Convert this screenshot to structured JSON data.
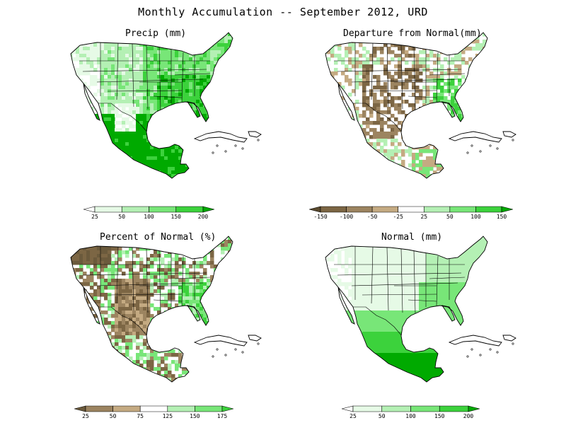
{
  "title": "Monthly Accumulation -- September 2012, URD",
  "panels": [
    {
      "title": "Precip (mm)",
      "colorbar": {
        "labels": [
          "25",
          "50",
          "100",
          "150",
          "200"
        ],
        "colors": [
          "#ffffff",
          "#e6fae6",
          "#b4f0b4",
          "#78e678",
          "#3cd23c",
          "#00aa00"
        ]
      }
    },
    {
      "title": "Departure from Normal(mm)",
      "colorbar": {
        "labels": [
          "-150",
          "-100",
          "-50",
          "-25",
          "25",
          "50",
          "100",
          "150"
        ],
        "colors": [
          "#5a4a2e",
          "#7c6644",
          "#9c8460",
          "#c4aa82",
          "#ffffff",
          "#b4f0b4",
          "#78e678",
          "#3cd23c",
          "#00aa00"
        ]
      }
    },
    {
      "title": "Percent of Normal (%)",
      "colorbar": {
        "labels": [
          "25",
          "50",
          "75",
          "125",
          "150",
          "175"
        ],
        "colors": [
          "#6b5a3c",
          "#9c8460",
          "#c4aa82",
          "#ffffff",
          "#b4f0b4",
          "#78e678",
          "#3cd23c"
        ]
      }
    },
    {
      "title": "Normal (mm)",
      "colorbar": {
        "labels": [
          "25",
          "50",
          "100",
          "150",
          "200"
        ],
        "colors": [
          "#ffffff",
          "#e6fae6",
          "#b4f0b4",
          "#78e678",
          "#3cd23c",
          "#00aa00"
        ]
      }
    }
  ]
}
